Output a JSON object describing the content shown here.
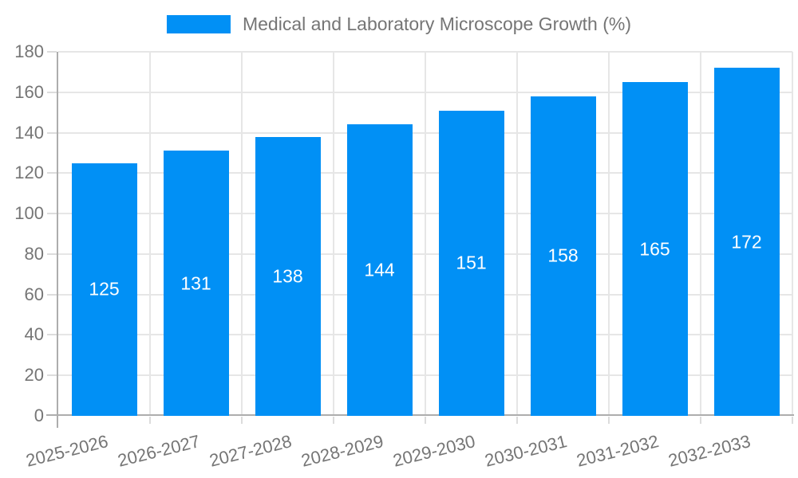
{
  "legend": {
    "label": "Medical and Laboratory Microscope Growth (%)"
  },
  "chart_data": {
    "type": "bar",
    "title": "Medical and Laboratory Microscope Growth (%)",
    "categories": [
      "2025-2026",
      "2026-2027",
      "2027-2028",
      "2028-2029",
      "2029-2030",
      "2030-2031",
      "2031-2032",
      "2032-2033"
    ],
    "values": [
      125,
      131,
      138,
      144,
      151,
      158,
      165,
      172
    ],
    "bar_labels": [
      "125",
      "131",
      "138",
      "144",
      "151",
      "158",
      "165",
      "172"
    ],
    "xlabel": "",
    "ylabel": "",
    "ylim": [
      0,
      180
    ],
    "yticks": [
      0,
      20,
      40,
      60,
      80,
      100,
      120,
      140,
      160,
      180
    ],
    "grid": true,
    "legend_position": "top",
    "colors": {
      "bar": "#0190f5",
      "bar_label": "#ffffff",
      "axis_text": "#757575",
      "grid": "#e6e6e6",
      "tick": "#dcdcdc",
      "axis_line": "#adadad",
      "background": "#ffffff"
    }
  }
}
